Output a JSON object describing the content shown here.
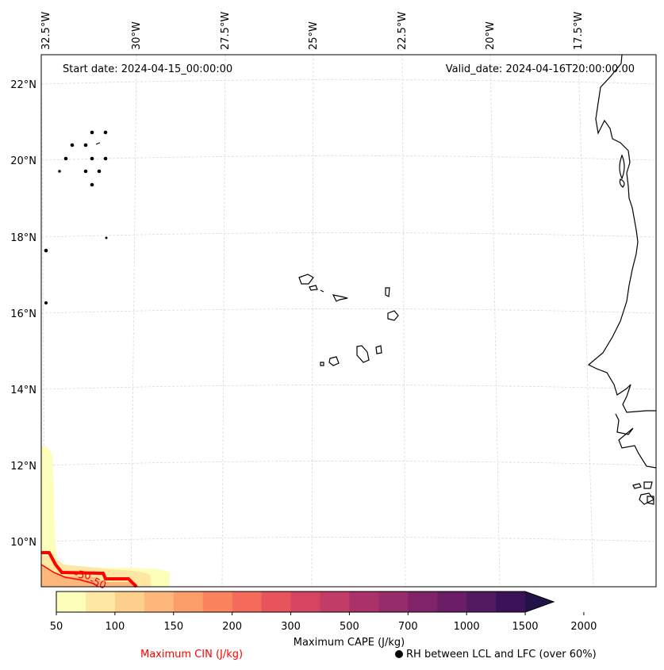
{
  "map": {
    "start_date_text": "Start date: 2024-04-15_00:00:00",
    "valid_date_text": "Valid_date: 2024-04-16T20:00:00.00",
    "lon_labels": [
      "32.5°W",
      "30°W",
      "27.5°W",
      "25°W",
      "22.5°W",
      "20°W",
      "17.5°W"
    ],
    "lat_labels": [
      "22°N",
      "20°N",
      "18°N",
      "16°N",
      "14°N",
      "12°N",
      "10°N"
    ],
    "cin_contour_label": "-50",
    "colors": {
      "coastline": "#000000",
      "gridline": "#d9d9d9",
      "cin_contour": "#ff0000"
    }
  },
  "colorbar": {
    "title": "Maximum CAPE (J/kg)",
    "tick_labels": [
      "50",
      "100",
      "150",
      "200",
      "300",
      "500",
      "700",
      "1000",
      "1500",
      "2000"
    ],
    "colors": [
      "#fefebb",
      "#fee6a3",
      "#fdcf8c",
      "#fdb77a",
      "#fc9e69",
      "#fb845e",
      "#f46b5b",
      "#e8545c",
      "#d54561",
      "#c13c66",
      "#ab3268",
      "#962c6a",
      "#812369",
      "#6b1d68",
      "#521a61",
      "#3b1157",
      "#201347"
    ]
  },
  "legend": {
    "cin_label": "Maximum CIN (J/kg)",
    "rh_label": "RH between LCL and LFC (over 60%)"
  }
}
